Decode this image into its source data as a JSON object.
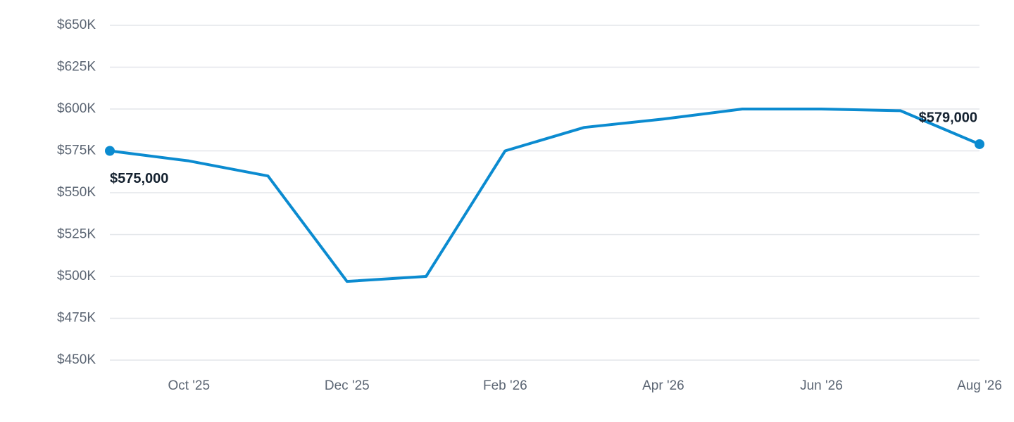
{
  "chart_data": {
    "type": "line",
    "categories": [
      null,
      "Oct '25",
      null,
      "Dec '25",
      null,
      "Feb '26",
      null,
      "Apr '26",
      null,
      "Jun '26",
      null,
      "Aug '26"
    ],
    "values": [
      575000,
      569000,
      560000,
      497000,
      500000,
      575000,
      589000,
      594000,
      600000,
      600000,
      599000,
      579000
    ],
    "value_labels": [
      "$575,000",
      null,
      null,
      null,
      null,
      null,
      null,
      null,
      null,
      null,
      null,
      "$579,000"
    ],
    "color": "#0b8bd0",
    "ylim": [
      450000,
      650000
    ],
    "yticks": [
      {
        "value": 450000,
        "label": "$450K"
      },
      {
        "value": 475000,
        "label": "$475K"
      },
      {
        "value": 500000,
        "label": "$500K"
      },
      {
        "value": 525000,
        "label": "$525K"
      },
      {
        "value": 550000,
        "label": "$550K"
      },
      {
        "value": 575000,
        "label": "$575K"
      },
      {
        "value": 600000,
        "label": "$600K"
      },
      {
        "value": 625000,
        "label": "$625K"
      },
      {
        "value": 650000,
        "label": "$650K"
      }
    ],
    "grid": true
  }
}
